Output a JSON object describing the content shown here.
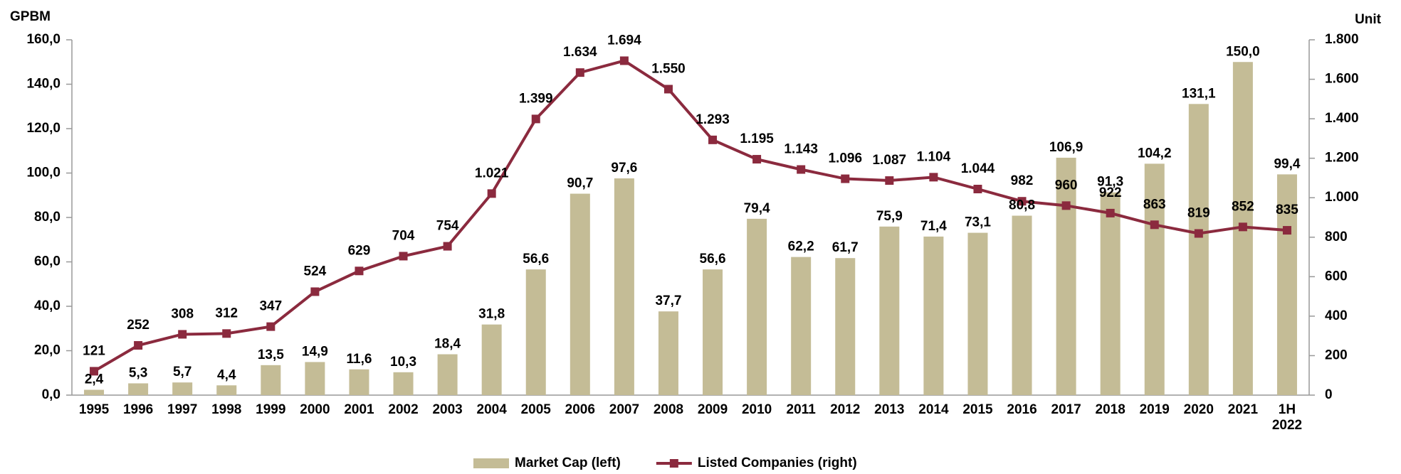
{
  "chart_data": {
    "type": "bar_line",
    "y_label": "GPBM",
    "y2_label": "Unit",
    "categories": [
      "1995",
      "1996",
      "1997",
      "1998",
      "1999",
      "2000",
      "2001",
      "2002",
      "2003",
      "2004",
      "2005",
      "2006",
      "2007",
      "2008",
      "2009",
      "2010",
      "2011",
      "2012",
      "2013",
      "2014",
      "2015",
      "2016",
      "2017",
      "2018",
      "2019",
      "2020",
      "2021",
      "1H\n2022"
    ],
    "series": [
      {
        "name": "Market Cap (left)",
        "type": "bar",
        "color": "#c4bc96",
        "axis": "y",
        "values": [
          2.4,
          5.3,
          5.7,
          4.4,
          13.5,
          14.9,
          11.6,
          10.3,
          18.4,
          31.8,
          56.6,
          90.7,
          97.6,
          37.7,
          56.6,
          79.4,
          62.2,
          61.7,
          75.9,
          71.4,
          73.1,
          80.8,
          106.9,
          91.3,
          104.2,
          131.1,
          150.0,
          99.4
        ],
        "value_labels": [
          "2,4",
          "5,3",
          "5,7",
          "4,4",
          "13,5",
          "14,9",
          "11,6",
          "10,3",
          "18,4",
          "31,8",
          "56,6",
          "90,7",
          "97,6",
          "37,7",
          "56,6",
          "79,4",
          "62,2",
          "61,7",
          "75,9",
          "71,4",
          "73,1",
          "80,8",
          "106,9",
          "91,3",
          "104,2",
          "131,1",
          "150,0",
          "99,4"
        ]
      },
      {
        "name": "Listed Companies (right)",
        "type": "line",
        "color": "#8b2a3e",
        "axis": "y2",
        "values": [
          121,
          252,
          308,
          312,
          347,
          524,
          629,
          704,
          754,
          1021,
          1399,
          1634,
          1694,
          1550,
          1293,
          1195,
          1143,
          1096,
          1087,
          1104,
          1044,
          982,
          960,
          922,
          863,
          819,
          852,
          835
        ],
        "value_labels": [
          "121",
          "252",
          "308",
          "312",
          "347",
          "524",
          "629",
          "704",
          "754",
          "1.021",
          "1.399",
          "1.634",
          "1.694",
          "1.550",
          "1.293",
          "1.195",
          "1.143",
          "1.096",
          "1.087",
          "1.104",
          "1.044",
          "982",
          "960",
          "922",
          "863",
          "819",
          "852",
          "835"
        ]
      }
    ],
    "ylim": [
      0,
      160
    ],
    "yticks": [
      {
        "value": 0,
        "label": "0,0"
      },
      {
        "value": 20,
        "label": "20,0"
      },
      {
        "value": 40,
        "label": "40,0"
      },
      {
        "value": 60,
        "label": "60,0"
      },
      {
        "value": 80,
        "label": "80,0"
      },
      {
        "value": 100,
        "label": "100,0"
      },
      {
        "value": 120,
        "label": "120,0"
      },
      {
        "value": 140,
        "label": "140,0"
      },
      {
        "value": 160,
        "label": "160,0"
      }
    ],
    "y2lim": [
      0,
      1800
    ],
    "y2ticks": [
      0,
      200,
      400,
      600,
      800,
      {
        "value": 1000,
        "label": "1.000"
      },
      {
        "value": 1200,
        "label": "1.200"
      },
      {
        "value": 1400,
        "label": "1.400"
      },
      {
        "value": 1600,
        "label": "1.600"
      },
      {
        "value": 1800,
        "label": "1.800"
      }
    ],
    "legend": "bottom"
  }
}
